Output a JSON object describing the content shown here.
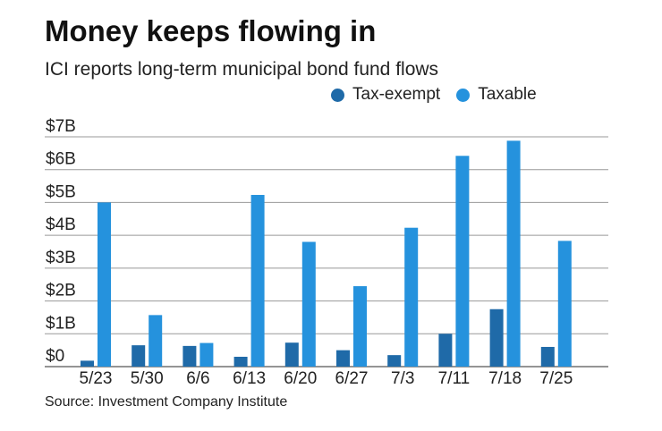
{
  "title": "Money keeps flowing in",
  "subtitle": "ICI reports long-term municipal bond fund flows",
  "source": "Source: Investment Company Institute",
  "colors": {
    "tax_exempt": "#1f6aa8",
    "taxable": "#2592dd",
    "grid": "#999999",
    "axis": "#555555"
  },
  "legend": [
    {
      "label": "Tax-exempt",
      "color": "#1f6aa8"
    },
    {
      "label": "Taxable",
      "color": "#2592dd"
    }
  ],
  "chart_data": {
    "type": "bar",
    "title": "Money keeps flowing in",
    "subtitle": "ICI reports long-term municipal bond fund flows",
    "xlabel": "",
    "ylabel": "",
    "categories": [
      "5/23",
      "5/30",
      "6/6",
      "6/13",
      "6/20",
      "6/27",
      "7/3",
      "7/11",
      "7/18",
      "7/25"
    ],
    "series": [
      {
        "name": "Tax-exempt",
        "values": [
          0.18,
          0.65,
          0.63,
          0.3,
          0.73,
          0.5,
          0.35,
          1.0,
          1.75,
          0.6
        ]
      },
      {
        "name": "Taxable",
        "values": [
          5.0,
          1.57,
          0.72,
          5.23,
          3.8,
          2.45,
          4.23,
          6.42,
          6.88,
          3.83
        ]
      }
    ],
    "yticks": [
      "$0",
      "$1B",
      "$2B",
      "$3B",
      "$4B",
      "$5B",
      "$6B",
      "$7B"
    ],
    "ylim": [
      0,
      7
    ],
    "grid": true,
    "legend_position": "top-right"
  }
}
